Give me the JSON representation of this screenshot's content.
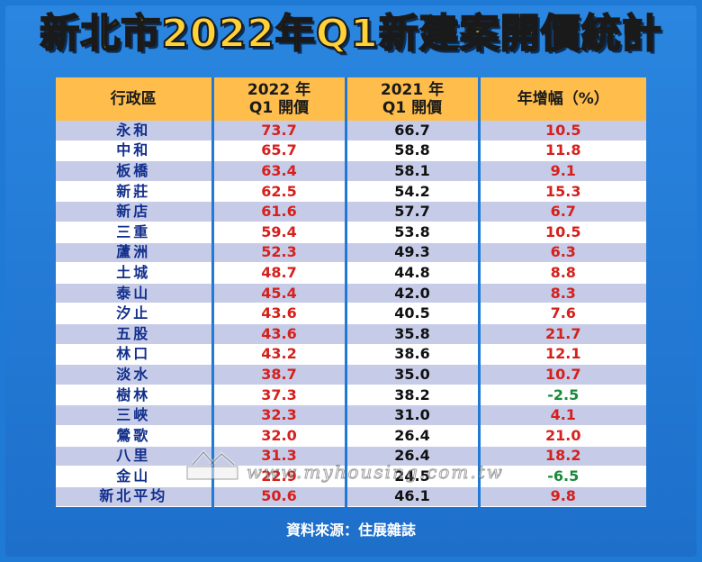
{
  "title": "新北市2022年Q1新建案開價統計",
  "table": {
    "headers": [
      {
        "line1": "行政區",
        "line2": ""
      },
      {
        "line1": "2022 年",
        "line2": "Q1 開價"
      },
      {
        "line1": "2021 年",
        "line2": "Q1 開價"
      },
      {
        "line1": "年增幅（%）",
        "line2": ""
      }
    ],
    "rows": [
      {
        "district": "永和",
        "y2022": "73.7",
        "y2021": "66.7",
        "growth": "10.5",
        "sign": "pos"
      },
      {
        "district": "中和",
        "y2022": "65.7",
        "y2021": "58.8",
        "growth": "11.8",
        "sign": "pos"
      },
      {
        "district": "板橋",
        "y2022": "63.4",
        "y2021": "58.1",
        "growth": "9.1",
        "sign": "pos"
      },
      {
        "district": "新莊",
        "y2022": "62.5",
        "y2021": "54.2",
        "growth": "15.3",
        "sign": "pos"
      },
      {
        "district": "新店",
        "y2022": "61.6",
        "y2021": "57.7",
        "growth": "6.7",
        "sign": "pos"
      },
      {
        "district": "三重",
        "y2022": "59.4",
        "y2021": "53.8",
        "growth": "10.5",
        "sign": "pos"
      },
      {
        "district": "蘆洲",
        "y2022": "52.3",
        "y2021": "49.3",
        "growth": "6.3",
        "sign": "pos"
      },
      {
        "district": "土城",
        "y2022": "48.7",
        "y2021": "44.8",
        "growth": "8.8",
        "sign": "pos"
      },
      {
        "district": "泰山",
        "y2022": "45.4",
        "y2021": "42.0",
        "growth": "8.3",
        "sign": "pos"
      },
      {
        "district": "汐止",
        "y2022": "43.6",
        "y2021": "40.5",
        "growth": "7.6",
        "sign": "pos"
      },
      {
        "district": "五股",
        "y2022": "43.6",
        "y2021": "35.8",
        "growth": "21.7",
        "sign": "pos"
      },
      {
        "district": "林口",
        "y2022": "43.2",
        "y2021": "38.6",
        "growth": "12.1",
        "sign": "pos"
      },
      {
        "district": "淡水",
        "y2022": "38.7",
        "y2021": "35.0",
        "growth": "10.7",
        "sign": "pos"
      },
      {
        "district": "樹林",
        "y2022": "37.3",
        "y2021": "38.2",
        "growth": "-2.5",
        "sign": "neg"
      },
      {
        "district": "三峽",
        "y2022": "32.3",
        "y2021": "31.0",
        "growth": "4.1",
        "sign": "pos"
      },
      {
        "district": "鶯歌",
        "y2022": "32.0",
        "y2021": "26.4",
        "growth": "21.0",
        "sign": "pos"
      },
      {
        "district": "八里",
        "y2022": "31.3",
        "y2021": "26.4",
        "growth": "18.2",
        "sign": "pos"
      },
      {
        "district": "金山",
        "y2022": "22.9",
        "y2021": "24.5",
        "growth": "-6.5",
        "sign": "neg"
      },
      {
        "district": "新北平均",
        "y2022": "50.6",
        "y2021": "46.1",
        "growth": "9.8",
        "sign": "pos"
      }
    ]
  },
  "source": "資料來源：住展雜誌",
  "watermark": {
    "url": "www.myhousing.com.tw",
    "logo_text": "住展"
  },
  "colors": {
    "background": "#1f7ad6",
    "header_bg": "#ffbe4c",
    "title": "#ffd23a",
    "row_odd": "#c6cbe8",
    "row_even": "#ffffff",
    "positive": "#d6201c",
    "negative": "#1a8a3a",
    "district": "#122f8c"
  }
}
